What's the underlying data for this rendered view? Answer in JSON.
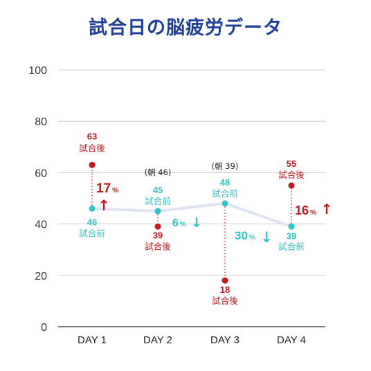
{
  "title": "試合日の脳疲労データ",
  "colors": {
    "before": "#2ec4c8",
    "after": "#c8161d",
    "trend_line": "#dfe4f2",
    "grid": "#cfcfcf",
    "title": "#1f3f9a"
  },
  "chart_data": {
    "type": "line",
    "title": "試合日の脳疲労データ",
    "categories": [
      "DAY 1",
      "DAY 2",
      "DAY 3",
      "DAY 4"
    ],
    "ylim": [
      0,
      100
    ],
    "yticks": [
      "0",
      "20",
      "40",
      "60",
      "80",
      "100"
    ],
    "grid": true,
    "series": [
      {
        "name": "試合前",
        "values": [
          46,
          45,
          48,
          39
        ]
      },
      {
        "name": "試合後",
        "values": [
          63,
          39,
          18,
          55
        ]
      }
    ],
    "value_labels": {
      "before": [
        "46",
        "45",
        "48",
        "39"
      ],
      "after": [
        "63",
        "39",
        "18",
        "55"
      ]
    },
    "notes": [
      "",
      "(朝 46)",
      "(朝 39)",
      ""
    ],
    "changes": [
      {
        "value": "17",
        "unit": "%",
        "arrow": "↑",
        "kind": "up"
      },
      {
        "value": "6",
        "unit": "%",
        "arrow": "↓",
        "kind": "down"
      },
      {
        "value": "30",
        "unit": "%",
        "arrow": "↓",
        "kind": "down"
      },
      {
        "value": "16",
        "unit": "%",
        "arrow": "↑",
        "kind": "up"
      }
    ]
  }
}
